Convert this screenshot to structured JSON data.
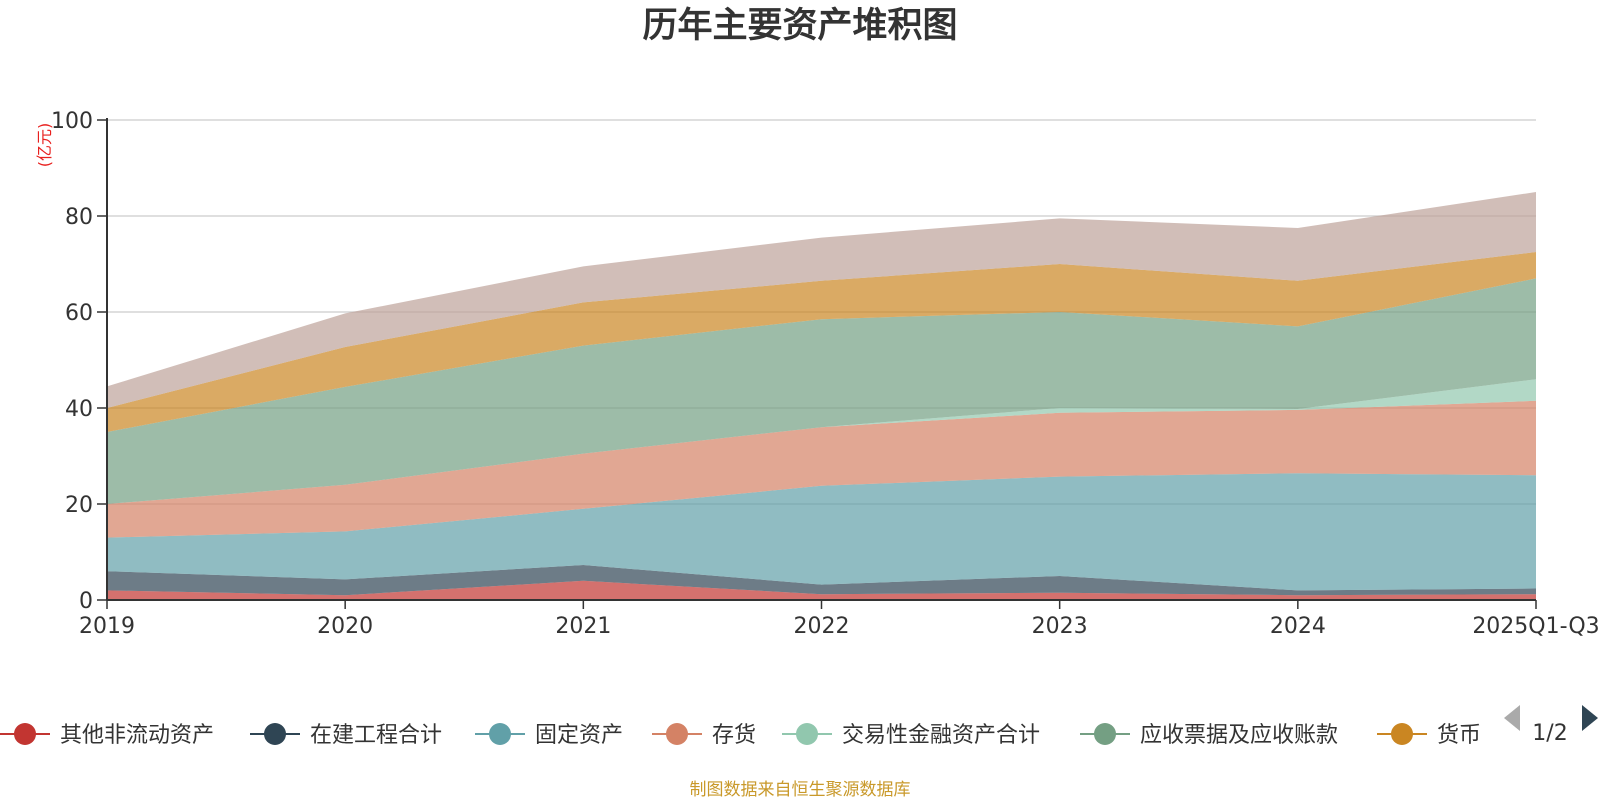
{
  "chart_data": {
    "type": "area",
    "stacked": true,
    "title": "历年主要资产堆积图",
    "ylabel": "(亿元)",
    "ylim": [
      0,
      100
    ],
    "yticks": [
      0,
      20,
      40,
      60,
      80,
      100
    ],
    "categories": [
      "2019",
      "2020",
      "2021",
      "2022",
      "2023",
      "2024",
      "2025Q1-Q3"
    ],
    "series": [
      {
        "name": "其他非流动资产",
        "color": "#c23531",
        "values": [
          2.0,
          1.0,
          4.0,
          1.2,
          1.5,
          1.0,
          1.2
        ],
        "in_legend": true
      },
      {
        "name": "在建工程合计",
        "color": "#2f4554",
        "values": [
          4.0,
          3.3,
          3.3,
          2.0,
          3.5,
          1.0,
          1.2
        ],
        "in_legend": true
      },
      {
        "name": "固定资产",
        "color": "#61a0a8",
        "values": [
          7.0,
          10.0,
          11.7,
          20.6,
          20.7,
          24.4,
          23.6
        ],
        "in_legend": true
      },
      {
        "name": "存货",
        "color": "#d48265",
        "values": [
          7.0,
          9.7,
          11.5,
          12.2,
          13.3,
          13.2,
          15.5
        ],
        "in_legend": true
      },
      {
        "name": "交易性金融资产合计",
        "color": "#91c7ae",
        "values": [
          0.0,
          0.0,
          0.0,
          0.0,
          1.0,
          0.2,
          4.5
        ],
        "in_legend": true
      },
      {
        "name": "应收票据及应收账款",
        "color": "#749f83",
        "values": [
          15.0,
          20.4,
          22.5,
          22.5,
          20.0,
          17.2,
          21.0
        ],
        "in_legend": true
      },
      {
        "name": "货币",
        "color": "#ca8622",
        "values": [
          5.0,
          8.3,
          9.0,
          8.0,
          10.0,
          9.5,
          5.5
        ],
        "in_legend": true
      },
      {
        "name": "",
        "color": "#bda29a",
        "values": [
          4.5,
          7.0,
          7.5,
          9.0,
          9.5,
          11.0,
          12.5
        ],
        "in_legend": false
      }
    ]
  },
  "legend": {
    "pager": "1/2"
  },
  "footer": {
    "source": "制图数据来自恒生聚源数据库"
  }
}
